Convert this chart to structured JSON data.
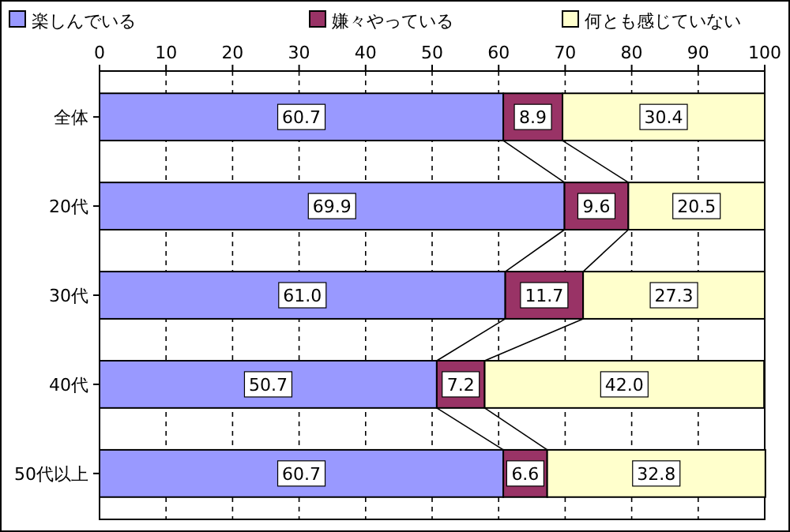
{
  "chart_data": {
    "type": "bar",
    "orientation": "horizontal",
    "stacked": true,
    "categories": [
      "全体",
      "20代",
      "30代",
      "40代",
      "50代以上"
    ],
    "series": [
      {
        "name": "楽しんでいる",
        "color": "#9999ff",
        "values": [
          60.7,
          69.9,
          61.0,
          50.7,
          60.7
        ],
        "value_labels": [
          "60.7",
          "69.9",
          "61.0",
          "50.7",
          "60.7"
        ]
      },
      {
        "name": "嫌々やっている",
        "color": "#993366",
        "values": [
          8.9,
          9.6,
          11.7,
          7.2,
          6.6
        ],
        "value_labels": [
          "8.9",
          "9.6",
          "11.7",
          "7.2",
          "6.6"
        ]
      },
      {
        "name": "何とも感じていない",
        "color": "#ffffcc",
        "values": [
          30.4,
          20.5,
          27.3,
          42.0,
          32.8
        ],
        "value_labels": [
          "30.4",
          "20.5",
          "27.3",
          "42.0",
          "32.8"
        ]
      }
    ],
    "xlim": [
      0,
      100
    ],
    "xticks": [
      0,
      10,
      20,
      30,
      40,
      50,
      60,
      70,
      80,
      90,
      100
    ],
    "grid": "x",
    "legend": "top"
  }
}
